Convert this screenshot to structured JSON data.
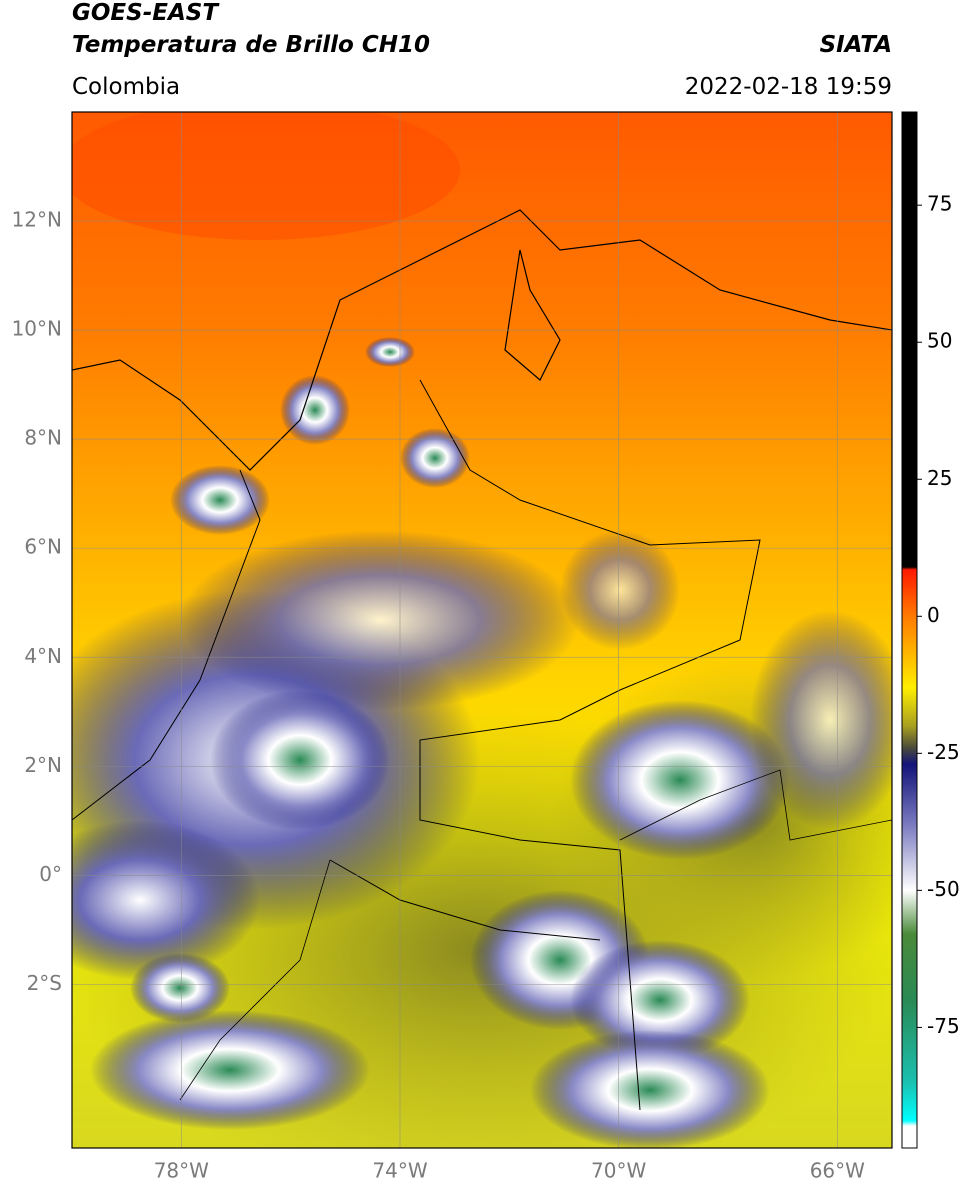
{
  "header": {
    "title": "GOES-EAST",
    "subtitle": "Temperatura de Brillo CH10",
    "region": "Colombia",
    "source": "SIATA",
    "timestamp": "2022-02-18 19:59"
  },
  "map": {
    "xlim": [
      -80,
      -65
    ],
    "ylim": [
      -5,
      14
    ],
    "xticks": [
      {
        "value": -78,
        "label": "78°W"
      },
      {
        "value": -74,
        "label": "74°W"
      },
      {
        "value": -70,
        "label": "70°W"
      },
      {
        "value": -66,
        "label": "66°W"
      }
    ],
    "yticks": [
      {
        "value": 12,
        "label": "12°N"
      },
      {
        "value": 10,
        "label": "10°N"
      },
      {
        "value": 8,
        "label": "8°N"
      },
      {
        "value": 6,
        "label": "6°N"
      },
      {
        "value": 4,
        "label": "4°N"
      },
      {
        "value": 2,
        "label": "2°N"
      },
      {
        "value": 0,
        "label": "0°"
      },
      {
        "value": -2,
        "label": "2°S"
      }
    ],
    "grid": true
  },
  "colorbar": {
    "lim": [
      -97,
      92
    ],
    "ticks": [
      75,
      50,
      25,
      0,
      -25,
      -50,
      -75
    ],
    "stops": [
      {
        "value": 92,
        "color": "#000000"
      },
      {
        "value": 9,
        "color": "#000000"
      },
      {
        "value": 8.5,
        "color": "#ff1a00"
      },
      {
        "value": 0,
        "color": "#ff7a00"
      },
      {
        "value": -13,
        "color": "#ffee00"
      },
      {
        "value": -20,
        "color": "#a8a020"
      },
      {
        "value": -24,
        "color": "#4a4a3a"
      },
      {
        "value": -27,
        "color": "#14147a"
      },
      {
        "value": -38,
        "color": "#7a7ac0"
      },
      {
        "value": -50,
        "color": "#ffffff"
      },
      {
        "value": -58,
        "color": "#4a8a3a"
      },
      {
        "value": -70,
        "color": "#2a8a55"
      },
      {
        "value": -85,
        "color": "#1ac0b0"
      },
      {
        "value": -92,
        "color": "#00ffff"
      },
      {
        "value": -93,
        "color": "#ffffff"
      },
      {
        "value": -97,
        "color": "#ffffff"
      }
    ]
  }
}
